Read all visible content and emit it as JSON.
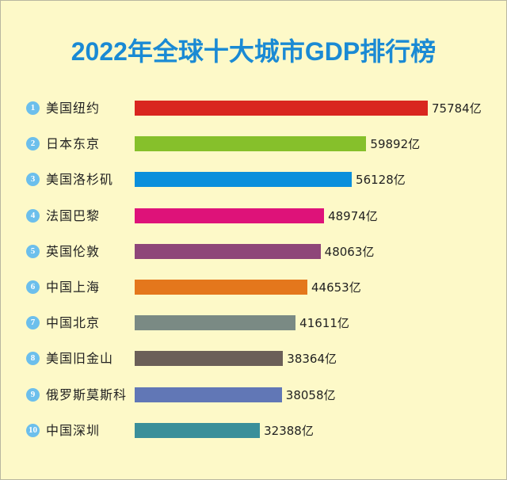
{
  "chart_data": {
    "type": "bar",
    "orientation": "horizontal",
    "title": "2022年全球十大城市GDP排行榜",
    "unit": "亿",
    "ranks": [
      "1",
      "2",
      "3",
      "4",
      "5",
      "6",
      "7",
      "8",
      "9",
      "10"
    ],
    "categories": [
      "美国纽约",
      "日本东京",
      "美国洛杉矶",
      "法国巴黎",
      "英国伦敦",
      "中国上海",
      "中国北京",
      "美国旧金山",
      "俄罗斯莫斯科",
      "中国深圳"
    ],
    "values": [
      75784,
      59892,
      56128,
      48974,
      48063,
      44653,
      41611,
      38364,
      38058,
      32388
    ],
    "value_labels": [
      "75784亿",
      "59892亿",
      "56128亿",
      "48974亿",
      "48063亿",
      "44653亿",
      "41611亿",
      "38364亿",
      "38058亿",
      "32388亿"
    ],
    "colors": [
      "#d9261f",
      "#86c02b",
      "#0a8fdc",
      "#de1279",
      "#8e4679",
      "#e4771c",
      "#7a8a84",
      "#6b5f58",
      "#6177b6",
      "#3a8f9a"
    ],
    "grid": false,
    "legend": "none"
  },
  "colors": {
    "background": "#fdf9c8",
    "title": "#1a8ad4",
    "badge": "#6cbfec"
  }
}
